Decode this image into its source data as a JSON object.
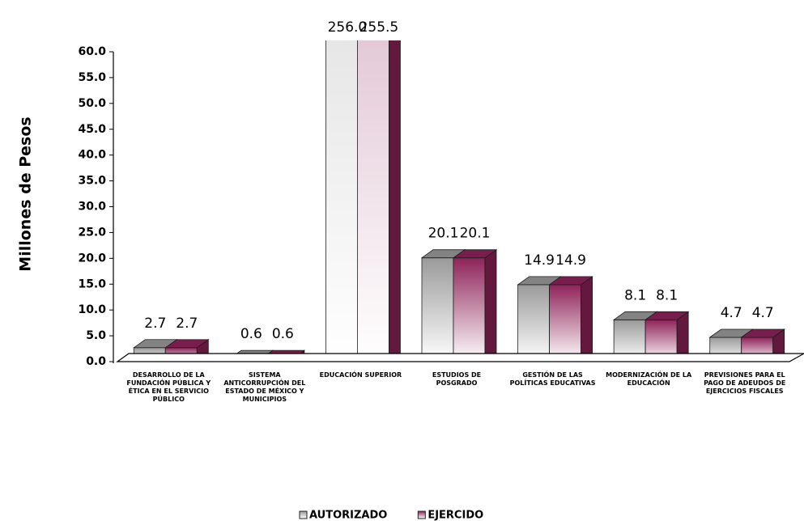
{
  "chart_data": {
    "type": "bar3d",
    "y_label": "Millones de Pesos",
    "categories": [
      "DESARROLLO DE LA FUNDACIÓN PÚBLICA Y ÉTICA EN EL SERVICIO PÚBLICO",
      "SISTEMA ANTICORRUPCIÓN DEL ESTADO DE MÉXICO Y MUNICIPIOS",
      "EDUCACIÓN SUPERIOR",
      "ESTUDIOS DE POSGRADO",
      "GESTIÓN DE LAS POLÍTICAS EDUCATIVAS",
      "MODERNIZACIÓN DE LA EDUCACIÓN",
      "PREVISIONES PARA EL PAGO DE ADEUDOS DE EJERCICIOS FISCALES"
    ],
    "series": [
      {
        "name": "AUTORIZADO",
        "color": "#9a9a9a",
        "values": [
          2.7,
          0.6,
          256.0,
          20.1,
          14.9,
          8.1,
          4.7
        ],
        "value_labels": [
          "2.7",
          "0.6",
          "256.0",
          "20.1",
          "14.9",
          "8.1",
          "4.7"
        ]
      },
      {
        "name": "EJERCIDO",
        "color": "#8e2359",
        "values": [
          2.7,
          0.6,
          255.5,
          20.1,
          14.9,
          8.1,
          4.7
        ],
        "value_labels": [
          "2.7",
          "0.6",
          "255.5",
          "20.1",
          "14.9",
          "8.1",
          "4.7"
        ]
      }
    ],
    "ylim": [
      0,
      60
    ],
    "yticks": [
      {
        "value": 0,
        "label": "0.0"
      },
      {
        "value": 5,
        "label": "5.0"
      },
      {
        "value": 10,
        "label": "10.0"
      },
      {
        "value": 15,
        "label": "15.0"
      },
      {
        "value": 20,
        "label": "20.0"
      },
      {
        "value": 25,
        "label": "25.0"
      },
      {
        "value": 30,
        "label": "30.0"
      },
      {
        "value": 35,
        "label": "35.0"
      },
      {
        "value": 40,
        "label": "40.0"
      },
      {
        "value": 45,
        "label": "45.0"
      },
      {
        "value": 50,
        "label": "50.0"
      },
      {
        "value": 55,
        "label": "55.0"
      },
      {
        "value": 60,
        "label": "60.0"
      }
    ]
  }
}
